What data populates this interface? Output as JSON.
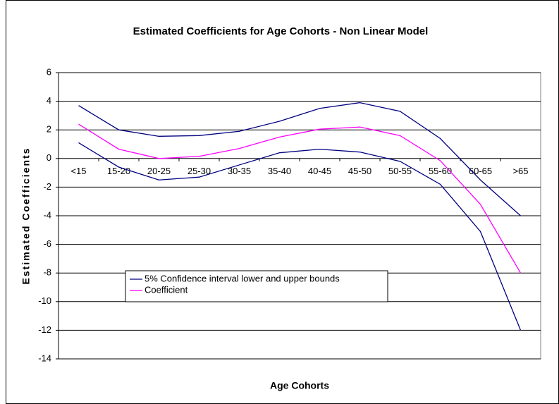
{
  "chart_data": {
    "type": "line",
    "title": "Estimated Coefficients for Age Cohorts - Non Linear Model",
    "x_label": "Age Cohorts",
    "y_label": "Estimated Coefficients",
    "categories": [
      "<15",
      "15-20",
      "20-25",
      "25-30",
      "30-35",
      "35-40",
      "40-45",
      "45-50",
      "50-55",
      "55-60",
      "60-65",
      ">65"
    ],
    "series": [
      {
        "name": "5% Confidence interval lower and upper bounds",
        "color": "#000080",
        "values": [
          3.7,
          2.0,
          1.55,
          1.6,
          1.9,
          2.6,
          3.5,
          3.9,
          3.3,
          1.4,
          -1.5,
          -4.0
        ]
      },
      {
        "name": "Coefficient",
        "color": "#ff00ff",
        "values": [
          2.4,
          0.65,
          0.0,
          0.15,
          0.7,
          1.5,
          2.05,
          2.2,
          1.6,
          -0.15,
          -3.2,
          -8.0
        ]
      },
      {
        "color": "#000080",
        "values": [
          1.1,
          -0.6,
          -1.5,
          -1.3,
          -0.45,
          0.4,
          0.65,
          0.45,
          -0.2,
          -1.8,
          -5.1,
          -12.0
        ]
      }
    ],
    "ylim": [
      -14,
      6
    ],
    "yticks": [
      -14,
      -12,
      -10,
      -8,
      -6,
      -4,
      -2,
      0,
      2,
      4,
      6
    ],
    "grid": true
  }
}
